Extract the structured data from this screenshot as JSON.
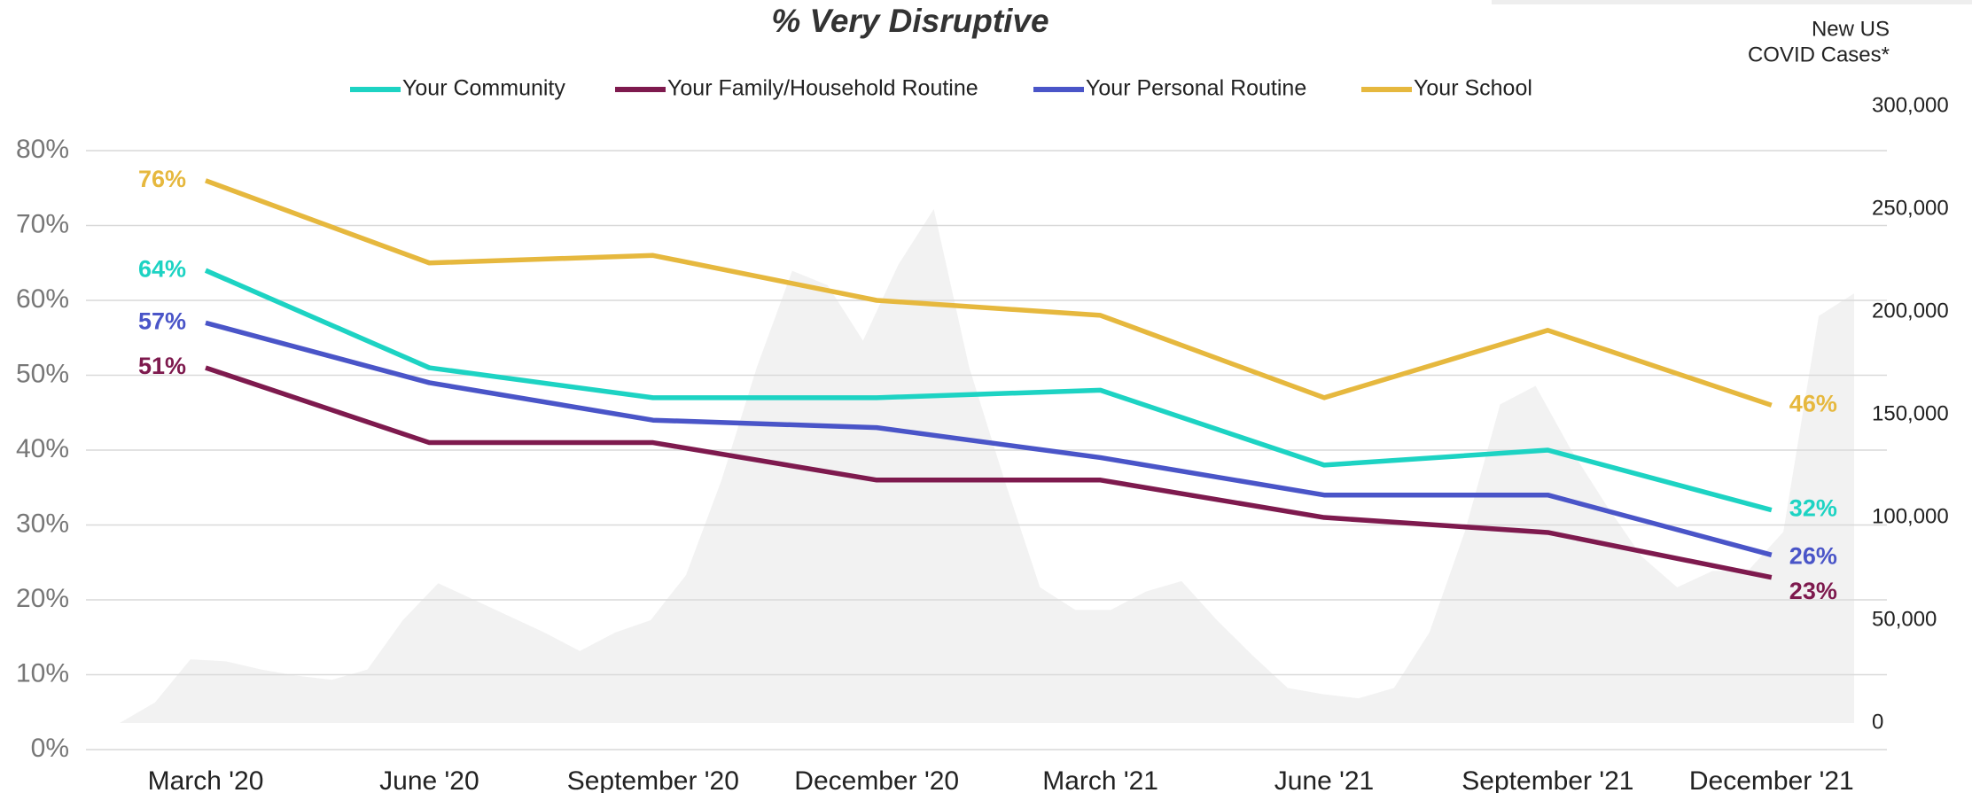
{
  "chart_data": {
    "type": "line",
    "title": "% Very Disruptive",
    "y2label": [
      "New US",
      "COVID Cases*"
    ],
    "categories": [
      "March '20",
      "June '20",
      "September '20",
      "December '20",
      "March '21",
      "June '21",
      "September '21",
      "December '21"
    ],
    "series": [
      {
        "name": "Your Community",
        "color": "#1dd3c3",
        "values": [
          64,
          51,
          47,
          47,
          48,
          38,
          40,
          32
        ],
        "value_labels": [
          "64%",
          null,
          null,
          null,
          null,
          null,
          null,
          "32%"
        ]
      },
      {
        "name": "Your Family/Household Routine",
        "color": "#7e1a4e",
        "values": [
          51,
          41,
          41,
          36,
          36,
          31,
          29,
          23
        ],
        "value_labels": [
          "51%",
          null,
          null,
          null,
          null,
          null,
          null,
          "23%"
        ]
      },
      {
        "name": "Your Personal Routine",
        "color": "#4a55c8",
        "values": [
          57,
          49,
          44,
          43,
          39,
          34,
          34,
          26
        ],
        "value_labels": [
          "57%",
          null,
          null,
          null,
          null,
          null,
          null,
          "26%"
        ]
      },
      {
        "name": "Your School",
        "color": "#e6b83e",
        "values": [
          76,
          65,
          66,
          60,
          58,
          47,
          56,
          46
        ],
        "value_labels": [
          "76%",
          null,
          null,
          null,
          null,
          null,
          null,
          "46%"
        ]
      }
    ],
    "area": {
      "axis": "y2",
      "color": "#f2f2f2",
      "values": [
        0,
        10000,
        31000,
        30000,
        26000,
        23000,
        21000,
        26000,
        50000,
        68000,
        60000,
        52000,
        44000,
        35000,
        44000,
        50000,
        72000,
        118000,
        173000,
        220000,
        213000,
        186000,
        223000,
        250000,
        173000,
        118000,
        66000,
        55000,
        55000,
        64000,
        69000,
        50000,
        33000,
        17000,
        14000,
        12000,
        17000,
        44000,
        93000,
        155000,
        164000,
        133000,
        106000,
        81000,
        66000,
        74000,
        74000,
        93000,
        198000,
        209000
      ]
    },
    "ylim": [
      0,
      80
    ],
    "yticks": [
      {
        "value": 0,
        "label": "0%"
      },
      {
        "value": 10,
        "label": "10%"
      },
      {
        "value": 20,
        "label": "20%"
      },
      {
        "value": 30,
        "label": "30%"
      },
      {
        "value": 40,
        "label": "40%"
      },
      {
        "value": 50,
        "label": "50%"
      },
      {
        "value": 60,
        "label": "60%"
      },
      {
        "value": 70,
        "label": "70%"
      },
      {
        "value": 80,
        "label": "80%"
      }
    ],
    "y2lim": [
      0,
      300000
    ],
    "y2ticks": [
      0,
      {
        "value": 50000,
        "label": "50,000"
      },
      {
        "value": 100000,
        "label": "100,000"
      },
      {
        "value": 150000,
        "label": "150,000"
      },
      {
        "value": 200000,
        "label": "200,000"
      },
      {
        "value": 250000,
        "label": "250,000"
      },
      {
        "value": 300000,
        "label": "300,000"
      }
    ],
    "grid": true
  }
}
